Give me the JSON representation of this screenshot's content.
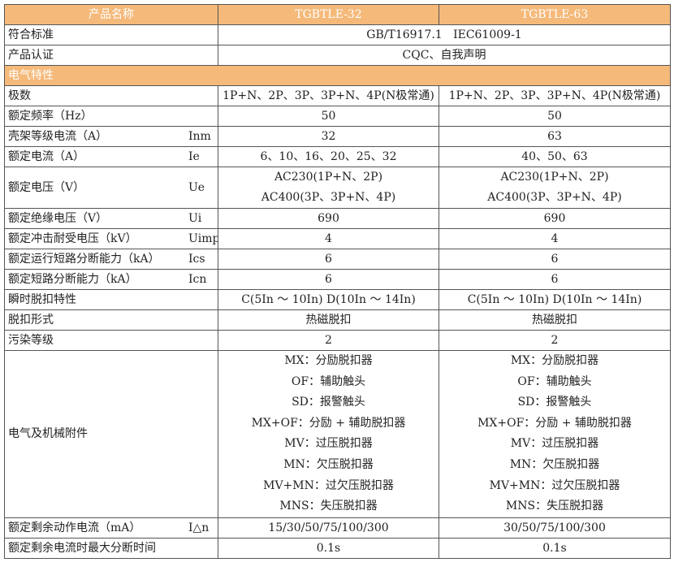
{
  "header": {
    "label": "产品名称",
    "models": [
      "TGBTLE-32",
      "TGBTLE-63"
    ]
  },
  "section": "电气特性",
  "rows_merged": [
    {
      "label": "符合标准",
      "value": "GB/T16917.1   IEC61009-1"
    },
    {
      "label": "产品认证",
      "value": "CQC、自我声明"
    }
  ],
  "rows": [
    {
      "label": "极数",
      "symbol": "",
      "v1": [
        "1P+N、2P、3P、3P+N、4P(N极常通)"
      ],
      "v2": [
        "1P+N、2P、3P、3P+N、4P(N极常通)"
      ]
    },
    {
      "label": "额定频率（Hz）",
      "symbol": "",
      "v1": [
        "50"
      ],
      "v2": [
        "50"
      ]
    },
    {
      "label": "壳架等级电流（A）",
      "symbol": "Inm",
      "v1": [
        "32"
      ],
      "v2": [
        "63"
      ]
    },
    {
      "label": "额定电流（A）",
      "symbol": "Ie",
      "v1": [
        "6、10、16、20、25、32"
      ],
      "v2": [
        "40、50、63"
      ]
    },
    {
      "label": "额定电压（V）",
      "symbol": "Ue",
      "v1": [
        "AC230(1P+N、2P)",
        "AC400(3P、3P+N、4P)"
      ],
      "v2": [
        "AC230(1P+N、2P)",
        "AC400(3P、3P+N、4P)"
      ]
    },
    {
      "label": "额定绝缘电压（V）",
      "symbol": "Ui",
      "v1": [
        "690"
      ],
      "v2": [
        "690"
      ]
    },
    {
      "label": "额定冲击耐受电压（kV）",
      "symbol": "Uimp",
      "v1": [
        "4"
      ],
      "v2": [
        "4"
      ]
    },
    {
      "label": "额定运行短路分断能力（kA）",
      "symbol": "Ics",
      "v1": [
        "6"
      ],
      "v2": [
        "6"
      ]
    },
    {
      "label": "额定短路分断能力（kA）",
      "symbol": "Icn",
      "v1": [
        "6"
      ],
      "v2": [
        "6"
      ]
    },
    {
      "label": "瞬时脱扣特性",
      "symbol": "",
      "v1": [
        "C(5In ～ 10In) D(10In ～ 14In)"
      ],
      "v2": [
        "C(5In ～ 10In) D(10In ～ 14In)"
      ]
    },
    {
      "label": "脱扣形式",
      "symbol": "",
      "v1": [
        "热磁脱扣"
      ],
      "v2": [
        "热磁脱扣"
      ]
    },
    {
      "label": "污染等级",
      "symbol": "",
      "v1": [
        "2"
      ],
      "v2": [
        "2"
      ]
    },
    {
      "label": "电气及机械附件",
      "symbol": "",
      "v1": [
        "MX：分励脱扣器",
        "OF：辅助触头",
        "SD：报警触头",
        "MX+OF：分励 + 辅助脱扣器",
        "MV：过压脱扣器",
        "MN：欠压脱扣器",
        "MV+MN：过欠压脱扣器",
        "MNS：失压脱扣器"
      ],
      "v2": [
        "MX：分励脱扣器",
        "OF：辅助触头",
        "SD：报警触头",
        "MX+OF：分励 + 辅助脱扣器",
        "MV：过压脱扣器",
        "MN：欠压脱扣器",
        "MV+MN：过欠压脱扣器",
        "MNS：失压脱扣器"
      ]
    },
    {
      "label": "额定剩余动作电流（mA）",
      "symbol": "I△n",
      "v1": [
        "15/30/50/75/100/300"
      ],
      "v2": [
        "30/50/75/100/300"
      ]
    },
    {
      "label": "额定剩余电流时最大分断时间",
      "symbol": "",
      "v1": [
        "0.1s"
      ],
      "v2": [
        "0.1s"
      ]
    }
  ],
  "colors": {
    "header_bg": "#F5B97A",
    "border": "#555555"
  }
}
